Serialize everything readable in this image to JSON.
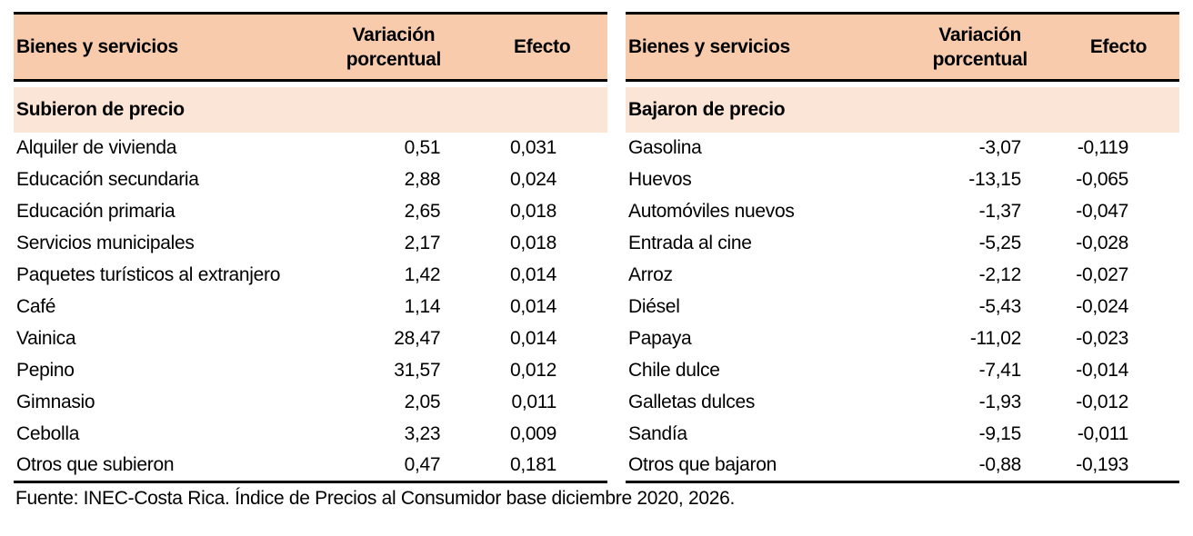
{
  "colors": {
    "header_bg": "#f8cbad",
    "section_bg": "#fbe5d6",
    "border": "#000000",
    "text": "#000000",
    "page_bg": "#ffffff"
  },
  "columns": {
    "item": "Bienes y servicios",
    "variation_line1": "Variación",
    "variation_line2": "porcentual",
    "effect": "Efecto"
  },
  "tables": [
    {
      "section": "Subieron de precio",
      "rows": [
        {
          "item": "Alquiler de vivienda",
          "variation": "0,51",
          "effect": "0,031"
        },
        {
          "item": "Educación secundaria",
          "variation": "2,88",
          "effect": "0,024"
        },
        {
          "item": "Educación primaria",
          "variation": "2,65",
          "effect": "0,018"
        },
        {
          "item": "Servicios municipales",
          "variation": "2,17",
          "effect": "0,018"
        },
        {
          "item": "Paquetes turísticos al extranjero",
          "variation": "1,42",
          "effect": "0,014"
        },
        {
          "item": "Café",
          "variation": "1,14",
          "effect": "0,014"
        },
        {
          "item": "Vainica",
          "variation": "28,47",
          "effect": "0,014"
        },
        {
          "item": "Pepino",
          "variation": "31,57",
          "effect": "0,012"
        },
        {
          "item": "Gimnasio",
          "variation": "2,05",
          "effect": "0,011"
        },
        {
          "item": "Cebolla",
          "variation": "3,23",
          "effect": "0,009"
        },
        {
          "item": "Otros que subieron",
          "variation": "0,47",
          "effect": "0,181"
        }
      ]
    },
    {
      "section": "Bajaron de precio",
      "rows": [
        {
          "item": "Gasolina",
          "variation": "-3,07",
          "effect": "-0,119"
        },
        {
          "item": "Huevos",
          "variation": "-13,15",
          "effect": "-0,065"
        },
        {
          "item": "Automóviles nuevos",
          "variation": "-1,37",
          "effect": "-0,047"
        },
        {
          "item": "Entrada al cine",
          "variation": "-5,25",
          "effect": "-0,028"
        },
        {
          "item": "Arroz",
          "variation": "-2,12",
          "effect": "-0,027"
        },
        {
          "item": "Diésel",
          "variation": "-5,43",
          "effect": "-0,024"
        },
        {
          "item": "Papaya",
          "variation": "-11,02",
          "effect": "-0,023"
        },
        {
          "item": "Chile dulce",
          "variation": "-7,41",
          "effect": "-0,014"
        },
        {
          "item": "Galletas dulces",
          "variation": "-1,93",
          "effect": "-0,012"
        },
        {
          "item": "Sandía",
          "variation": "-9,15",
          "effect": "-0,011"
        },
        {
          "item": "Otros que bajaron",
          "variation": "-0,88",
          "effect": "-0,193"
        }
      ]
    }
  ],
  "footer": "Fuente: INEC-Costa Rica. Índice de Precios al Consumidor base diciembre 2020, 2026."
}
